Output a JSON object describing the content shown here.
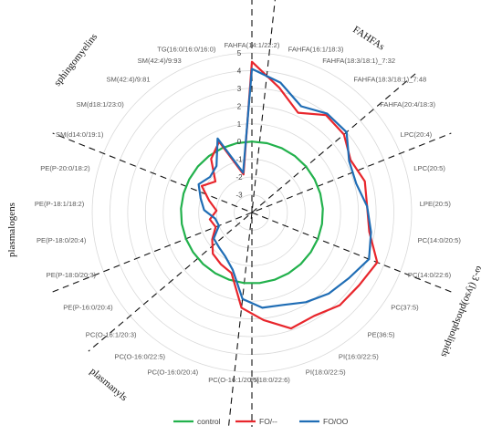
{
  "chart_data": {
    "type": "radar",
    "axes": [
      "FAHFA(14:1/22:2)",
      "FAHFA(16:1/18:3)",
      "FAHFA(18:3/18:1)_7:32",
      "FAHFA(18:3/18:1)_7:48",
      "FAHFA(20:4/18:3)",
      "LPC(20:4)",
      "LPC(20:5)",
      "LPE(20:5)",
      "PC(14:0/20:5)",
      "PC(14:0/22:6)",
      "PC(37:5)",
      "PE(36:5)",
      "PI(16:0/22:5)",
      "PI(18:0/22:5)",
      "PI(18:0/22:6)",
      "PC(O-16:1/20:5)",
      "PC(O-16:0/20:4)",
      "PC(O-16:0/22:5)",
      "PC(O-16:1/20:3)",
      "PE(P-16:0/20:4)",
      "PE(P-18:0/20:3)",
      "PE(P-18:0/20:4)",
      "PE(P-18:1/18:2)",
      "PE(P-20:0/18:2)",
      "SM(d14:0/19:1)",
      "SM(d18:1/23:0)",
      "SM(42:4)/9:81",
      "SM(42:4)/9:93",
      "TG(16:0/16:0/16:0)"
    ],
    "ticks": [
      "5",
      "4",
      "3",
      "2",
      "1",
      "0",
      "-1",
      "-2",
      "-3"
    ],
    "rlim": [
      -4,
      5
    ],
    "series": [
      {
        "name": "control",
        "color": "#22b14c",
        "values": [
          0,
          0,
          0,
          0,
          0,
          0,
          0,
          0,
          0,
          0,
          0,
          0,
          0,
          0,
          0,
          0,
          0,
          0,
          0,
          0,
          0,
          0,
          0,
          0,
          0,
          0,
          0,
          0,
          0
        ]
      },
      {
        "name": "FO/--",
        "color": "#e8262c",
        "values": [
          4.5,
          3.2,
          2.2,
          2.9,
          2.8,
          2.3,
          2.6,
          2.5,
          2.7,
          3.6,
          3.3,
          3.2,
          2.8,
          2.9,
          2.1,
          1.4,
          -0.4,
          -0.6,
          -0.8,
          -1.3,
          -1.8,
          -1.6,
          -2.0,
          -1.5,
          -0.8,
          -1.3,
          -0.2,
          0.4,
          -1.8
        ]
      },
      {
        "name": "FO/OO",
        "color": "#1f6db5",
        "values": [
          4.1,
          3.5,
          2.6,
          3.0,
          3.0,
          2.2,
          2.1,
          2.5,
          2.8,
          3.1,
          2.6,
          2.3,
          1.9,
          1.5,
          1.4,
          0.9,
          -0.6,
          -1.1,
          -1.3,
          -1.4,
          -2.0,
          -1.9,
          -1.3,
          -1.0,
          -0.6,
          -0.9,
          -0.7,
          0.6,
          -1.7
        ]
      }
    ],
    "group_labels": [
      "FAHFAs",
      "sphingomyelins",
      "ω-3 (lyso)phospholipids",
      "plasmalogens",
      "plasmanyls"
    ]
  }
}
